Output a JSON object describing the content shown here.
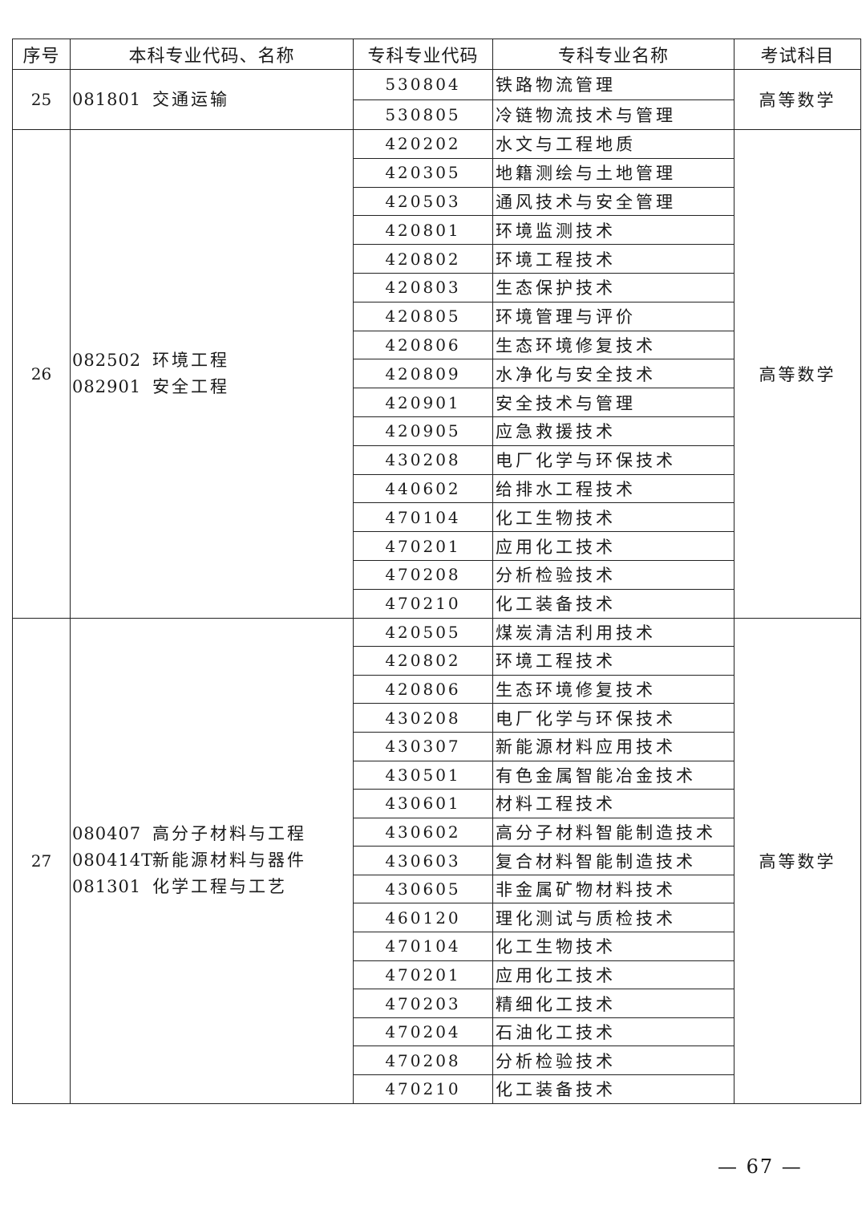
{
  "table": {
    "headers": [
      "序号",
      "本科专业代码、名称",
      "专科专业代码",
      "专科专业名称",
      "考试科目"
    ],
    "groups": [
      {
        "index": "25",
        "undergrad": [
          {
            "code": "081801",
            "name": "交通运输"
          }
        ],
        "exam": "高等数学",
        "majors": [
          {
            "code": "530804",
            "name": "铁路物流管理"
          },
          {
            "code": "530805",
            "name": "冷链物流技术与管理"
          }
        ]
      },
      {
        "index": "26",
        "undergrad": [
          {
            "code": "082502",
            "name": "环境工程"
          },
          {
            "code": "082901",
            "name": "安全工程"
          }
        ],
        "exam": "高等数学",
        "majors": [
          {
            "code": "420202",
            "name": "水文与工程地质"
          },
          {
            "code": "420305",
            "name": "地籍测绘与土地管理"
          },
          {
            "code": "420503",
            "name": "通风技术与安全管理"
          },
          {
            "code": "420801",
            "name": "环境监测技术"
          },
          {
            "code": "420802",
            "name": "环境工程技术"
          },
          {
            "code": "420803",
            "name": "生态保护技术"
          },
          {
            "code": "420805",
            "name": "环境管理与评价"
          },
          {
            "code": "420806",
            "name": "生态环境修复技术"
          },
          {
            "code": "420809",
            "name": "水净化与安全技术"
          },
          {
            "code": "420901",
            "name": "安全技术与管理"
          },
          {
            "code": "420905",
            "name": "应急救援技术"
          },
          {
            "code": "430208",
            "name": "电厂化学与环保技术"
          },
          {
            "code": "440602",
            "name": "给排水工程技术"
          },
          {
            "code": "470104",
            "name": "化工生物技术"
          },
          {
            "code": "470201",
            "name": "应用化工技术"
          },
          {
            "code": "470208",
            "name": "分析检验技术"
          },
          {
            "code": "470210",
            "name": "化工装备技术"
          }
        ]
      },
      {
        "index": "27",
        "undergrad": [
          {
            "code": "080407",
            "name": "高分子材料与工程"
          },
          {
            "code": "080414T",
            "name": "新能源材料与器件"
          },
          {
            "code": "081301",
            "name": "化学工程与工艺"
          }
        ],
        "exam": "高等数学",
        "majors": [
          {
            "code": "420505",
            "name": "煤炭清洁利用技术"
          },
          {
            "code": "420802",
            "name": "环境工程技术"
          },
          {
            "code": "420806",
            "name": "生态环境修复技术"
          },
          {
            "code": "430208",
            "name": "电厂化学与环保技术"
          },
          {
            "code": "430307",
            "name": "新能源材料应用技术"
          },
          {
            "code": "430501",
            "name": "有色金属智能冶金技术"
          },
          {
            "code": "430601",
            "name": "材料工程技术"
          },
          {
            "code": "430602",
            "name": "高分子材料智能制造技术"
          },
          {
            "code": "430603",
            "name": "复合材料智能制造技术"
          },
          {
            "code": "430605",
            "name": "非金属矿物材料技术"
          },
          {
            "code": "460120",
            "name": "理化测试与质检技术"
          },
          {
            "code": "470104",
            "name": "化工生物技术"
          },
          {
            "code": "470201",
            "name": "应用化工技术"
          },
          {
            "code": "470203",
            "name": "精细化工技术"
          },
          {
            "code": "470204",
            "name": "石油化工技术"
          },
          {
            "code": "470208",
            "name": "分析检验技术"
          },
          {
            "code": "470210",
            "name": "化工装备技术"
          }
        ]
      }
    ]
  },
  "page_number": "— 67 —"
}
